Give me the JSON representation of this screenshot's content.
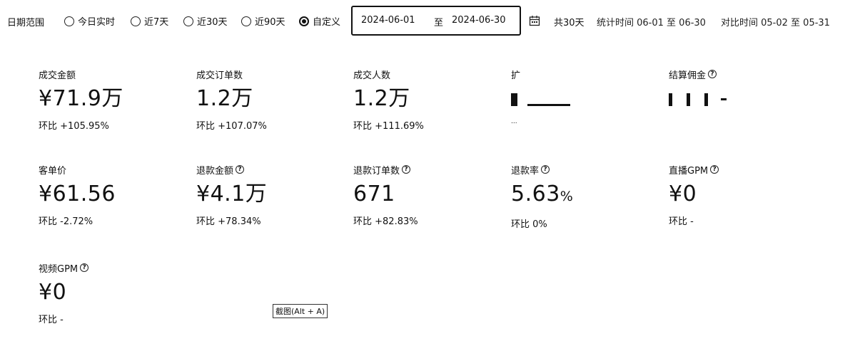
{
  "filter": {
    "range_label": "日期范围",
    "options": [
      {
        "label": "今日实时",
        "checked": false
      },
      {
        "label": "近7天",
        "checked": false
      },
      {
        "label": "近30天",
        "checked": false
      },
      {
        "label": "近90天",
        "checked": false
      },
      {
        "label": "自定义",
        "checked": true
      }
    ],
    "start_date": "2024-06-01",
    "separator": "至",
    "end_date": "2024-06-30",
    "calendar_icon": "calendar-icon",
    "total_days": "共30天",
    "stat_time": "统计时间 06-01 至 06-30",
    "compare_time": "对比时间 05-02 至 05-31"
  },
  "metrics": {
    "m1": {
      "label": "成交金额",
      "value": "¥71.9万",
      "delta": "环比 +105.95%"
    },
    "m2": {
      "label": "成交订单数",
      "value": "1.2万",
      "delta": "环比 +107.07%"
    },
    "m3": {
      "label": "成交人数",
      "value": "1.2万",
      "delta": "环比 +111.69%"
    },
    "m4": {
      "label": "扩",
      "delta": "..."
    },
    "m5": {
      "label": "结算佣金"
    },
    "m6": {
      "label": "客单价",
      "value": "¥61.56",
      "delta": "环比 -2.72%"
    },
    "m7": {
      "label": "退款金额",
      "value": "¥4.1万",
      "delta": "环比 +78.34%"
    },
    "m8": {
      "label": "退款订单数",
      "value": "671",
      "delta": "环比 +82.83%"
    },
    "m9": {
      "label": "退款率",
      "value": "5.63",
      "unit": "%",
      "delta": "环比 0%"
    },
    "m10": {
      "label": "直播GPM",
      "value": "¥0",
      "delta": "环比 -"
    },
    "m11": {
      "label": "视频GPM",
      "value": "¥0",
      "delta": "环比 -"
    }
  },
  "tooltip": {
    "text": "截图(Alt + A)"
  },
  "help_icon": "question-circle-icon"
}
